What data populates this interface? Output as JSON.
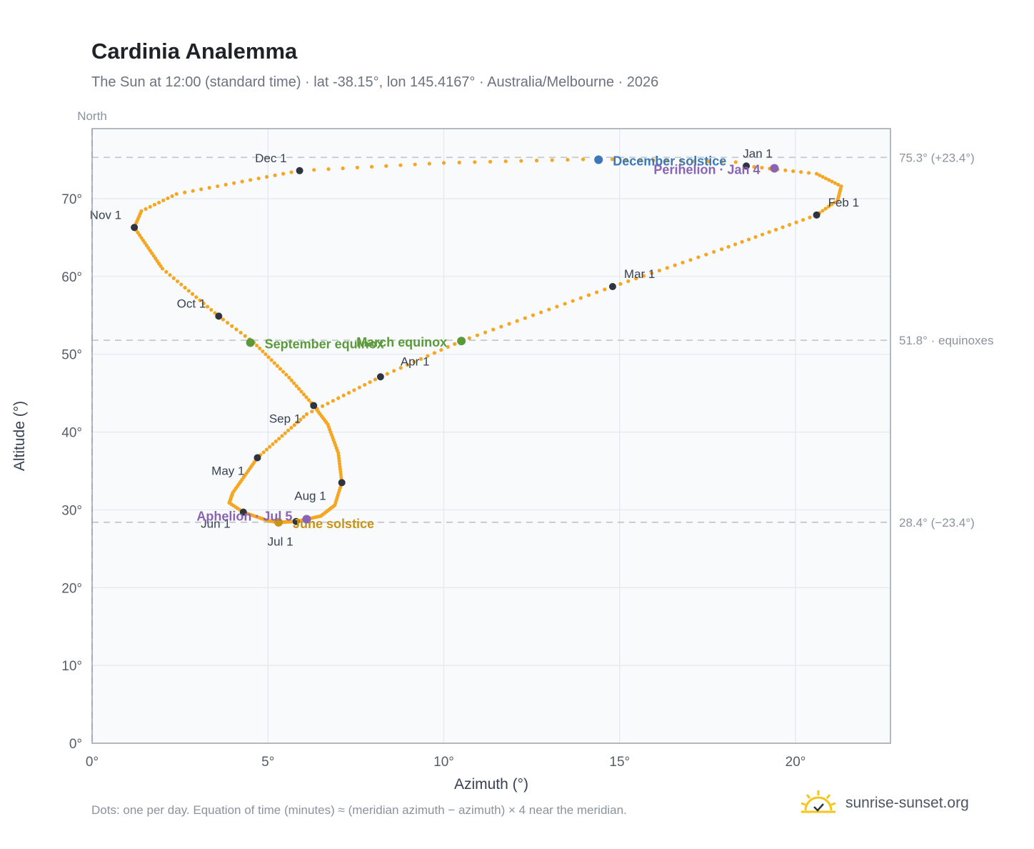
{
  "header": {
    "title": "Cardinia Analemma",
    "subtitle": "The Sun at 12:00 (standard time) · lat -38.15°, lon 145.4167° · Australia/Melbourne · 2026"
  },
  "footer": {
    "note": "Dots: one per day. Equation of time (minutes) ≈ (meridian azimuth − azimuth) × 4 near the meridian.",
    "brand": "sunrise-sunset.org"
  },
  "colors": {
    "path": "#f5a623",
    "month_dot": "#2f3540",
    "equinox": "#5a9a3a",
    "december_solstice": "#3a78b8",
    "june_solstice": "#c89418",
    "apsis": "#8a64b4",
    "grid": "#e3e8ee",
    "plot_bg": "#f8fafc",
    "frame": "#9aa3ad"
  },
  "chart_data": {
    "type": "scatter",
    "xlabel": "Azimuth (°)",
    "ylabel": "Altitude (°)",
    "xlim": [
      0,
      22.7
    ],
    "ylim": [
      0,
      79
    ],
    "xticks": [
      0,
      5,
      10,
      15,
      20
    ],
    "yticks": [
      0,
      10,
      20,
      30,
      40,
      50,
      60,
      70
    ],
    "xtick_labels": [
      "0°",
      "5°",
      "10°",
      "15°",
      "20°"
    ],
    "ytick_labels": [
      "0°",
      "10°",
      "20°",
      "30°",
      "40°",
      "50°",
      "60°",
      "70°"
    ],
    "north_label": "North",
    "north_azimuth": 0,
    "grid": true,
    "reference_lines": [
      {
        "altitude": 75.3,
        "label": "75.3° (+23.4°)"
      },
      {
        "altitude": 51.8,
        "label": "51.8° · equinoxes"
      },
      {
        "altitude": 28.4,
        "label": "28.4° (−23.4°)"
      }
    ],
    "path_points": [
      {
        "doy": 1,
        "az": 18.6,
        "alt": 74.2
      },
      {
        "doy": 10,
        "az": 20.6,
        "alt": 73.2
      },
      {
        "doy": 18,
        "az": 21.3,
        "alt": 71.6
      },
      {
        "doy": 25,
        "az": 21.2,
        "alt": 69.8
      },
      {
        "doy": 32,
        "az": 20.6,
        "alt": 67.9
      },
      {
        "doy": 46,
        "az": 17.9,
        "alt": 63.5
      },
      {
        "doy": 60,
        "az": 14.8,
        "alt": 58.7
      },
      {
        "doy": 79,
        "az": 10.5,
        "alt": 51.7
      },
      {
        "doy": 91,
        "az": 8.2,
        "alt": 47.1
      },
      {
        "doy": 105,
        "az": 6.1,
        "alt": 42.3
      },
      {
        "doy": 121,
        "az": 4.7,
        "alt": 36.7
      },
      {
        "doy": 137,
        "az": 4.0,
        "alt": 32.2
      },
      {
        "doy": 145,
        "az": 3.9,
        "alt": 30.9
      },
      {
        "doy": 152,
        "az": 4.3,
        "alt": 29.7
      },
      {
        "doy": 165,
        "az": 5.0,
        "alt": 28.6
      },
      {
        "doy": 172,
        "az": 5.3,
        "alt": 28.4
      },
      {
        "doy": 182,
        "az": 5.8,
        "alt": 28.5
      },
      {
        "doy": 194,
        "az": 6.5,
        "alt": 29.2
      },
      {
        "doy": 204,
        "az": 6.9,
        "alt": 30.6
      },
      {
        "doy": 213,
        "az": 7.1,
        "alt": 33.5
      },
      {
        "doy": 224,
        "az": 7.0,
        "alt": 37.3
      },
      {
        "doy": 235,
        "az": 6.7,
        "alt": 41.0
      },
      {
        "doy": 244,
        "az": 6.3,
        "alt": 43.4
      },
      {
        "doy": 254,
        "az": 5.6,
        "alt": 47.0
      },
      {
        "doy": 266,
        "az": 4.6,
        "alt": 51.5
      },
      {
        "doy": 274,
        "az": 3.6,
        "alt": 54.9
      },
      {
        "doy": 289,
        "az": 2.0,
        "alt": 61.0
      },
      {
        "doy": 305,
        "az": 1.2,
        "alt": 66.3
      },
      {
        "doy": 312,
        "az": 1.4,
        "alt": 68.4
      },
      {
        "doy": 320,
        "az": 2.4,
        "alt": 70.6
      },
      {
        "doy": 335,
        "az": 5.9,
        "alt": 73.6
      },
      {
        "doy": 345,
        "az": 10.0,
        "alt": 74.6
      },
      {
        "doy": 355,
        "az": 14.4,
        "alt": 75.1
      },
      {
        "doy": 365,
        "az": 18.3,
        "alt": 74.7
      }
    ],
    "month_markers": [
      {
        "label": "Jan 1",
        "az": 18.6,
        "alt": 74.2
      },
      {
        "label": "Feb 1",
        "az": 20.6,
        "alt": 67.9
      },
      {
        "label": "Mar 1",
        "az": 14.8,
        "alt": 58.7
      },
      {
        "label": "Apr 1",
        "az": 8.2,
        "alt": 47.1
      },
      {
        "label": "May 1",
        "az": 4.7,
        "alt": 36.7
      },
      {
        "label": "Jun 1",
        "az": 4.3,
        "alt": 29.7
      },
      {
        "label": "Jul 1",
        "az": 5.8,
        "alt": 28.5
      },
      {
        "label": "Aug 1",
        "az": 7.1,
        "alt": 33.5
      },
      {
        "label": "Sep 1",
        "az": 6.3,
        "alt": 43.4
      },
      {
        "label": "Oct 1",
        "az": 3.6,
        "alt": 54.9
      },
      {
        "label": "Nov 1",
        "az": 1.2,
        "alt": 66.3
      },
      {
        "label": "Dec 1",
        "az": 5.9,
        "alt": 73.6
      }
    ],
    "events": [
      {
        "label": "March equinox",
        "az": 10.5,
        "alt": 51.7,
        "kind": "equinox"
      },
      {
        "label": "September equinox",
        "az": 4.5,
        "alt": 51.5,
        "kind": "equinox"
      },
      {
        "label": "December solstice",
        "az": 14.4,
        "alt": 75.0,
        "kind": "december_solstice"
      },
      {
        "label": "June solstice",
        "az": 5.3,
        "alt": 28.4,
        "kind": "june_solstice"
      },
      {
        "label": "Perihelion · Jan 4",
        "az": 19.4,
        "alt": 73.9,
        "kind": "apsis"
      },
      {
        "label": "Aphelion · Jul 5",
        "az": 6.1,
        "alt": 28.8,
        "kind": "apsis"
      }
    ]
  }
}
